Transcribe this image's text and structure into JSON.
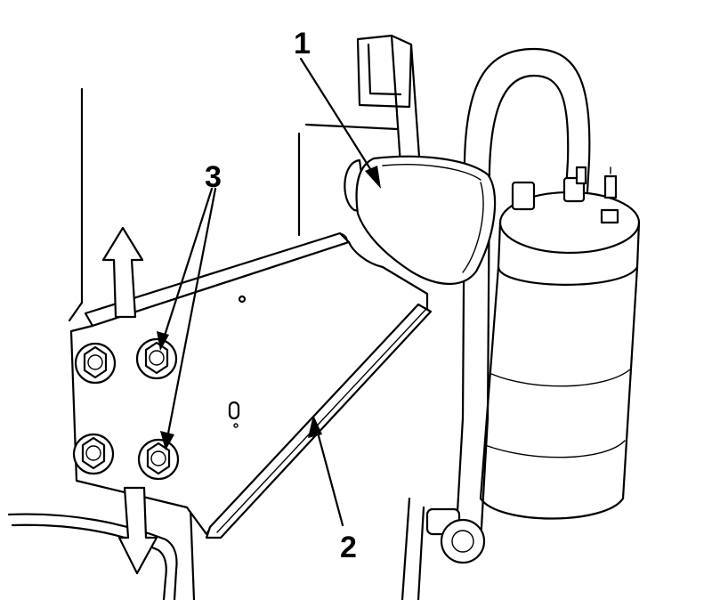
{
  "diagram": {
    "callouts": [
      {
        "label": "1"
      },
      {
        "label": "2"
      },
      {
        "label": "3"
      }
    ],
    "colors": {
      "ink": "#000000",
      "paper": "#ffffff"
    },
    "icons": [
      "up-arrow-icon",
      "down-arrow-icon"
    ]
  }
}
